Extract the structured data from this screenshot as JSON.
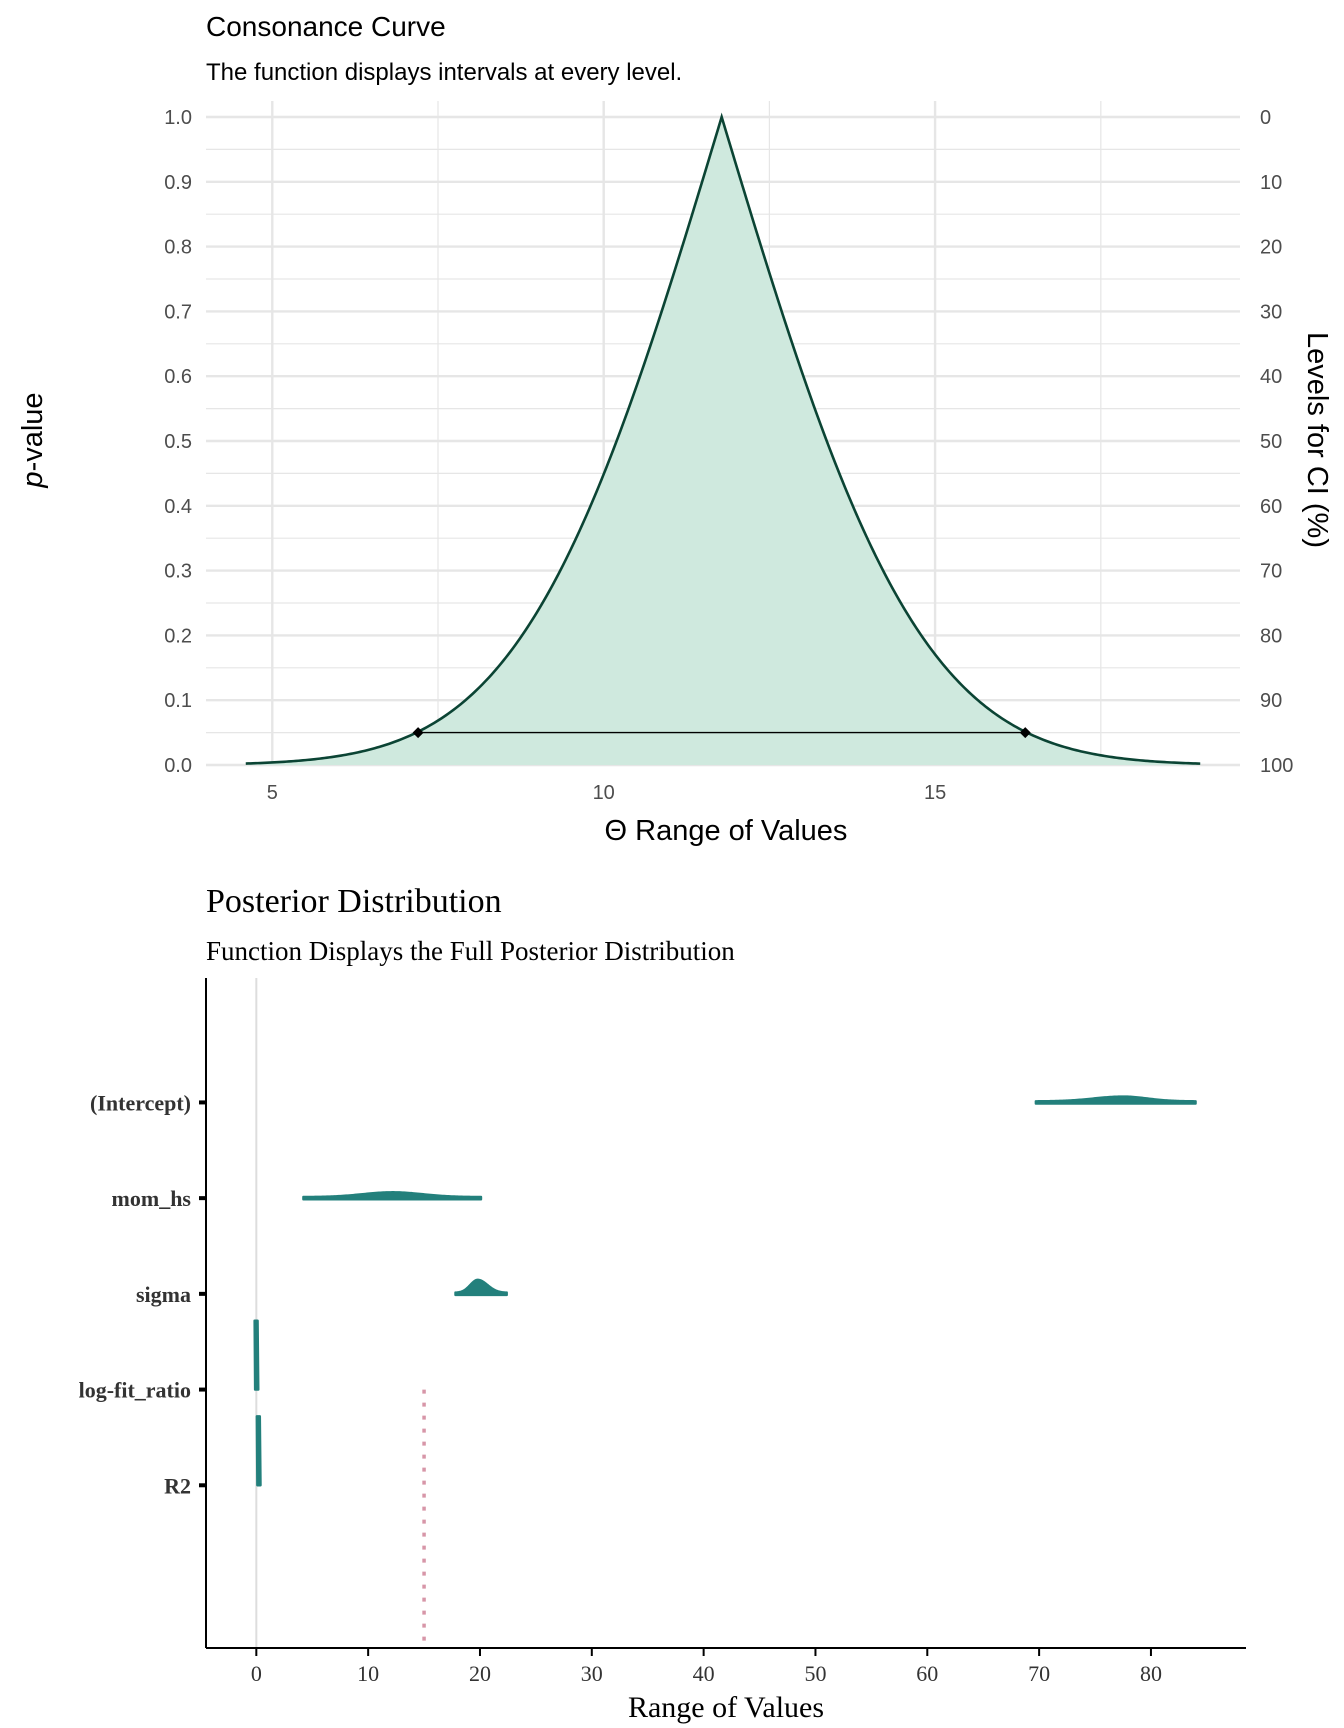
{
  "chart_data": [
    {
      "type": "area",
      "title": "Consonance Curve",
      "subtitle": "The function displays intervals at every level.",
      "xlabel": "Θ Range of Values",
      "ylabel_prefix": "p",
      "ylabel_suffix": "-value",
      "y2label": "Levels for CI (%)",
      "xlim": [
        4.0,
        19.6
      ],
      "ylim": [
        0,
        1
      ],
      "x_ticks": [
        5,
        10,
        15
      ],
      "y_ticks": [
        0.0,
        0.1,
        0.2,
        0.3,
        0.4,
        0.5,
        0.6,
        0.7,
        0.8,
        0.9,
        1.0
      ],
      "y_tick_labels": [
        "0.0",
        "0.1",
        "0.2",
        "0.3",
        "0.4",
        "0.5",
        "0.6",
        "0.7",
        "0.8",
        "0.9",
        "1.0"
      ],
      "y2_tick_labels": [
        "100",
        "90",
        "80",
        "70",
        "60",
        "50",
        "40",
        "30",
        "20",
        "10",
        "0"
      ],
      "grid": true,
      "curve": {
        "point_estimate": 11.78,
        "x_min": 4.6,
        "x_max": 19.0,
        "se": 2.35
      },
      "interval_95": {
        "lower": 7.2,
        "upper": 16.36,
        "p": 0.05
      },
      "colors": {
        "fill": "#cfe9de",
        "line": "#0b4434",
        "grid": "#e6e6e6"
      }
    },
    {
      "type": "violin",
      "title": "Posterior Distribution",
      "subtitle": "Function Displays the Full Posterior Distribution",
      "xlabel": "Range of Values",
      "xlim": [
        -4.5,
        88.5
      ],
      "x_ticks": [
        0,
        10,
        20,
        30,
        40,
        50,
        60,
        70,
        80
      ],
      "categories": [
        "(Intercept)",
        "mom_hs",
        "sigma",
        "log-fit_ratio",
        "R2"
      ],
      "series": [
        {
          "name": "(Intercept)",
          "min": 69.7,
          "max": 84.0,
          "mode": 77.5,
          "peak": 0.1
        },
        {
          "name": "mom_hs",
          "min": 4.2,
          "max": 20.1,
          "mode": 12.2,
          "peak": 0.1
        },
        {
          "name": "sigma",
          "min": 17.8,
          "max": 22.4,
          "mode": 19.8,
          "peak": 0.27
        },
        {
          "name": "log-fit_ratio",
          "min": -0.15,
          "max": 0.1,
          "mode": -0.02,
          "vertical": true
        },
        {
          "name": "R2",
          "min": 0.1,
          "max": 0.3,
          "mode": 0.18,
          "vertical": true
        }
      ],
      "reference_line": {
        "x": 0
      },
      "dotted_line": {
        "x": 15
      },
      "colors": {
        "violin": "#23807c",
        "reference": "#dddddd",
        "dotted": "#d796a8",
        "axis": "#000000"
      }
    }
  ]
}
